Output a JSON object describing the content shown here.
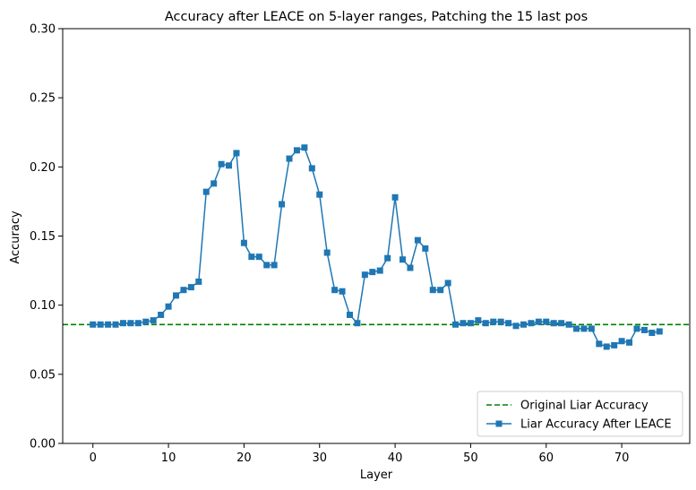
{
  "chart_data": {
    "type": "line",
    "title": "Accuracy after LEACE on 5-layer ranges, Patching the 15 last pos",
    "xlabel": "Layer",
    "ylabel": "Accuracy",
    "xlim": [
      -4,
      79
    ],
    "ylim": [
      0.0,
      0.3
    ],
    "xticks": [
      0,
      10,
      20,
      30,
      40,
      50,
      60,
      70
    ],
    "xtick_labels": [
      "0",
      "10",
      "20",
      "30",
      "40",
      "50",
      "60",
      "70"
    ],
    "yticks": [
      0.0,
      0.05,
      0.1,
      0.15,
      0.2,
      0.25,
      0.3
    ],
    "ytick_labels": [
      "0.00",
      "0.05",
      "0.10",
      "0.15",
      "0.20",
      "0.25",
      "0.30"
    ],
    "grid": false,
    "legend_position": "lower-right",
    "reference_line": {
      "name": "Original Liar Accuracy",
      "value": 0.086,
      "style": "dashed",
      "color": "#008000"
    },
    "series": [
      {
        "name": "Liar Accuracy After LEACE",
        "color": "#1f77b4",
        "marker": "square",
        "x": [
          0,
          1,
          2,
          3,
          4,
          5,
          6,
          7,
          8,
          9,
          10,
          11,
          12,
          13,
          14,
          15,
          16,
          17,
          18,
          19,
          20,
          21,
          22,
          23,
          24,
          25,
          26,
          27,
          28,
          29,
          30,
          31,
          32,
          33,
          34,
          35,
          36,
          37,
          38,
          39,
          40,
          41,
          42,
          43,
          44,
          45,
          46,
          47,
          48,
          49,
          50,
          51,
          52,
          53,
          54,
          55,
          56,
          57,
          58,
          59,
          60,
          61,
          62,
          63,
          64,
          65,
          66,
          67,
          68,
          69,
          70,
          71,
          72,
          73,
          74,
          75
        ],
        "values": [
          0.086,
          0.086,
          0.086,
          0.086,
          0.087,
          0.087,
          0.087,
          0.088,
          0.089,
          0.093,
          0.099,
          0.107,
          0.111,
          0.113,
          0.117,
          0.182,
          0.188,
          0.202,
          0.201,
          0.21,
          0.145,
          0.135,
          0.135,
          0.129,
          0.129,
          0.173,
          0.206,
          0.212,
          0.214,
          0.199,
          0.18,
          0.138,
          0.111,
          0.11,
          0.093,
          0.087,
          0.122,
          0.124,
          0.125,
          0.134,
          0.178,
          0.133,
          0.127,
          0.147,
          0.141,
          0.111,
          0.111,
          0.116,
          0.086,
          0.087,
          0.087,
          0.089,
          0.087,
          0.088,
          0.088,
          0.087,
          0.085,
          0.086,
          0.087,
          0.088,
          0.088,
          0.087,
          0.087,
          0.086,
          0.083,
          0.083,
          0.083,
          0.072,
          0.07,
          0.071,
          0.074,
          0.073,
          0.083,
          0.082,
          0.08,
          0.081
        ]
      }
    ]
  }
}
